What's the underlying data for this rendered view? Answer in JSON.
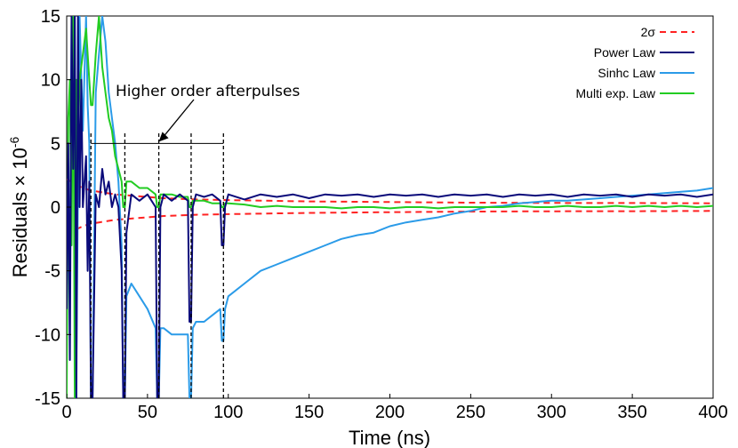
{
  "chart_data": {
    "type": "line",
    "xlabel": "Time (ns)",
    "ylabel": "Residuals × 10",
    "ylabel_exponent": "-6",
    "xlim": [
      0,
      400
    ],
    "ylim": [
      -15,
      15
    ],
    "xticks": [
      0,
      50,
      100,
      150,
      200,
      250,
      300,
      350,
      400
    ],
    "yticks": [
      15,
      10,
      5,
      0,
      -5,
      -10,
      -15
    ],
    "grid": false,
    "legend_position": "top-right",
    "annotation": {
      "text": "Higher order afterpulses",
      "bracket_y": 5,
      "markers_x": [
        15,
        36,
        57,
        77,
        97
      ]
    },
    "series": [
      {
        "name": "2σ",
        "color": "#ff2222",
        "style": "dashed",
        "x": [
          0,
          5,
          10,
          15,
          20,
          25,
          30,
          40,
          50,
          60,
          80,
          100,
          150,
          200,
          250,
          300,
          350,
          400
        ],
        "upper": [
          2.2,
          1.8,
          1.5,
          1.3,
          1.2,
          1.1,
          1.0,
          0.9,
          0.8,
          0.7,
          0.6,
          0.55,
          0.45,
          0.4,
          0.35,
          0.33,
          0.32,
          0.3
        ],
        "lower": [
          -2.2,
          -1.8,
          -1.5,
          -1.3,
          -1.2,
          -1.1,
          -1.0,
          -0.9,
          -0.8,
          -0.7,
          -0.6,
          -0.55,
          -0.45,
          -0.4,
          -0.35,
          -0.33,
          -0.32,
          -0.3
        ]
      },
      {
        "name": "Power Law",
        "color": "#0a0a7a",
        "x": [
          0,
          1,
          2,
          3,
          4,
          5,
          6,
          7,
          8,
          9,
          10,
          12,
          13,
          14,
          15,
          16,
          18,
          20,
          22,
          24,
          26,
          28,
          30,
          32,
          34,
          35,
          36,
          37,
          40,
          45,
          50,
          55,
          56,
          57,
          58,
          60,
          65,
          70,
          75,
          76,
          77,
          78,
          80,
          85,
          90,
          95,
          96,
          97,
          98,
          100,
          110,
          120,
          130,
          140,
          150,
          160,
          170,
          180,
          190,
          200,
          210,
          220,
          230,
          240,
          250,
          260,
          270,
          280,
          290,
          300,
          310,
          320,
          330,
          340,
          350,
          360,
          370,
          380,
          390,
          400
        ],
        "y": [
          -8,
          5,
          -12,
          15,
          3,
          15,
          -15,
          15,
          0,
          10,
          0,
          4,
          -5,
          2,
          -15,
          -15,
          1,
          0,
          3,
          1,
          2,
          0,
          1,
          0,
          -5,
          -15,
          -15,
          -2,
          1,
          0.5,
          1,
          0,
          -15,
          -15,
          0,
          1,
          0.5,
          1,
          0.5,
          -9,
          -9,
          0,
          1,
          0.8,
          1,
          0.5,
          -3,
          -3,
          0,
          1,
          0.6,
          1,
          0.8,
          1,
          0.7,
          1,
          0.9,
          1,
          0.8,
          1,
          0.9,
          1,
          0.8,
          1,
          0.9,
          1,
          0.8,
          1,
          0.9,
          1,
          0.8,
          1,
          0.9,
          1,
          0.8,
          1,
          0.9,
          1,
          0.8,
          1
        ]
      },
      {
        "name": "Sinhc Law",
        "color": "#2b9be8",
        "x": [
          0,
          1,
          2,
          3,
          4,
          5,
          6,
          8,
          10,
          12,
          13,
          14,
          15,
          16,
          18,
          20,
          22,
          24,
          26,
          28,
          30,
          32,
          34,
          35,
          36,
          37,
          40,
          45,
          50,
          55,
          56,
          57,
          58,
          60,
          65,
          70,
          75,
          76,
          77,
          78,
          80,
          85,
          90,
          95,
          96,
          97,
          98,
          100,
          110,
          120,
          130,
          140,
          150,
          160,
          170,
          180,
          190,
          200,
          210,
          220,
          230,
          240,
          250,
          260,
          270,
          280,
          290,
          300,
          310,
          320,
          330,
          340,
          350,
          360,
          370,
          380,
          390,
          400
        ],
        "y": [
          -8,
          2,
          -6,
          15,
          5,
          15,
          -12,
          15,
          6,
          15,
          8,
          5,
          -15,
          -15,
          9,
          12,
          15,
          13,
          9,
          7,
          5,
          2,
          -3,
          -15,
          -15,
          -7,
          -6,
          -7,
          -8,
          -9.5,
          -15,
          -15,
          -9.5,
          -9.5,
          -10,
          -10,
          -10,
          -15,
          -15,
          -9.5,
          -9,
          -9,
          -8.5,
          -8,
          -10.5,
          -10.5,
          -8,
          -7,
          -6,
          -5,
          -4.5,
          -4,
          -3.5,
          -3,
          -2.5,
          -2.2,
          -2,
          -1.5,
          -1.2,
          -1,
          -0.8,
          -0.5,
          -0.3,
          0,
          0.1,
          0.3,
          0.4,
          0.5,
          0.5,
          0.6,
          0.7,
          0.8,
          0.9,
          1,
          1.1,
          1.2,
          1.3,
          1.5
        ]
      },
      {
        "name": "Multi exp. Law",
        "color": "#22cc22",
        "x": [
          0,
          1,
          2,
          3,
          4,
          5,
          6,
          7,
          8,
          10,
          12,
          14,
          15,
          16,
          18,
          20,
          22,
          24,
          26,
          28,
          30,
          32,
          34,
          35,
          36,
          37,
          40,
          45,
          50,
          55,
          56,
          57,
          58,
          60,
          65,
          70,
          75,
          76,
          77,
          78,
          80,
          85,
          90,
          95,
          96,
          97,
          98,
          100,
          110,
          120,
          130,
          140,
          150,
          160,
          170,
          180,
          190,
          200,
          210,
          220,
          230,
          240,
          250,
          260,
          270,
          280,
          290,
          300,
          310,
          320,
          330,
          340,
          350,
          360,
          370,
          380,
          390,
          400
        ],
        "y": [
          -15,
          7,
          10,
          -3,
          15,
          -15,
          10,
          5,
          10,
          12,
          14,
          10,
          8,
          8,
          12,
          15,
          11,
          9,
          7,
          6,
          4,
          3,
          2,
          0,
          0,
          2,
          2,
          1.5,
          1.5,
          1,
          0,
          0,
          1,
          1,
          1,
          0.8,
          0.8,
          0,
          0,
          0.5,
          0.5,
          0.5,
          0.3,
          0.3,
          0,
          0,
          0.3,
          0.3,
          0.2,
          0,
          0.1,
          0,
          0,
          0,
          -0.1,
          0,
          0,
          -0.1,
          0,
          0,
          -0.1,
          0,
          0,
          0,
          0,
          0.1,
          0,
          0,
          0.1,
          0,
          0,
          0.1,
          0,
          0.1,
          0,
          0.1,
          0,
          0.1
        ]
      }
    ]
  }
}
